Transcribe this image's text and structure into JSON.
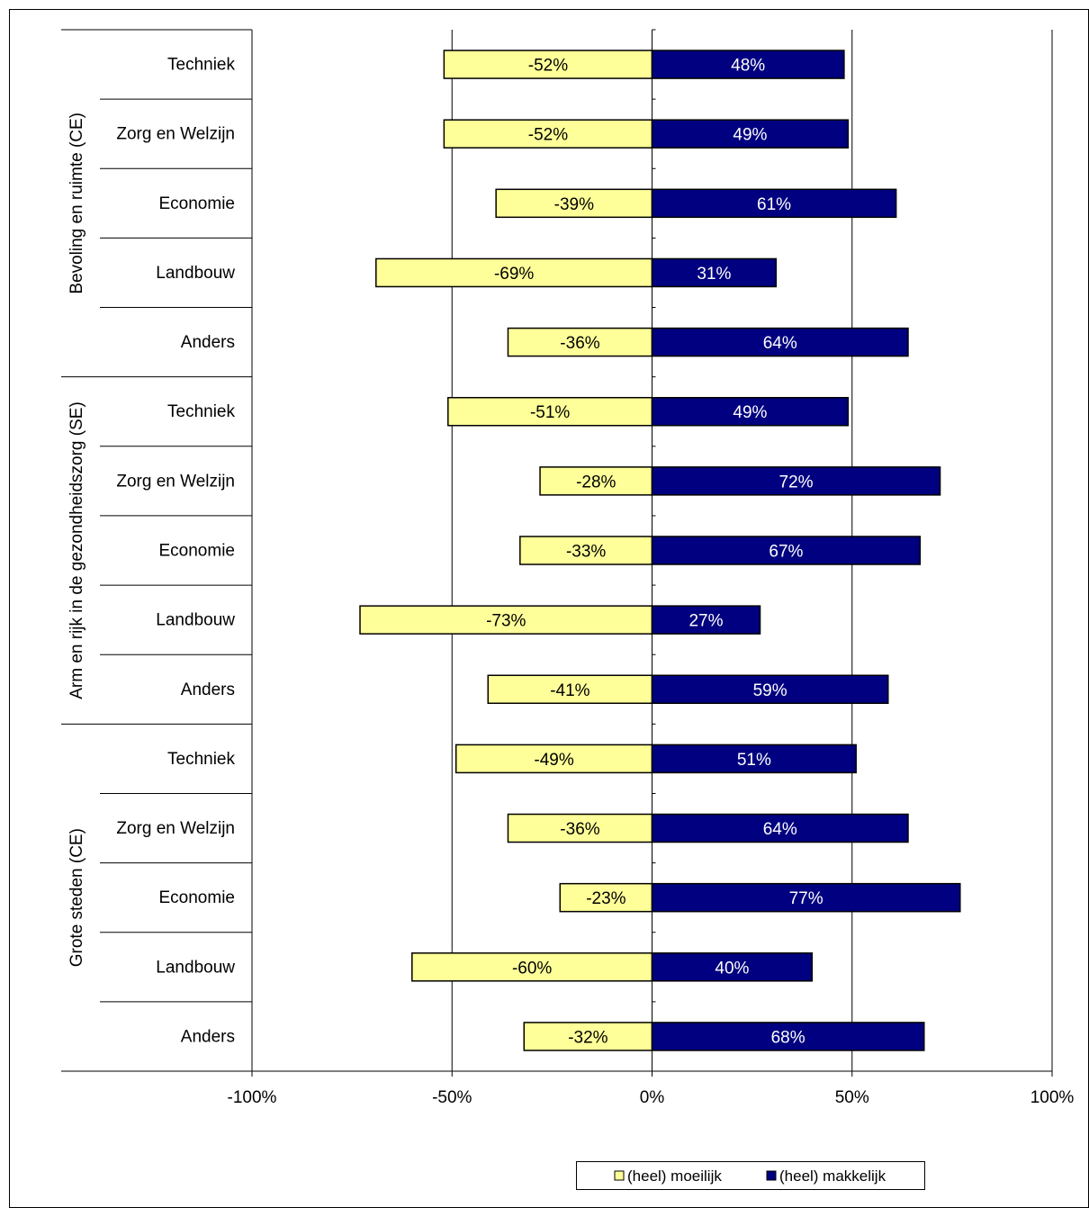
{
  "chart_data": {
    "type": "bar",
    "orientation": "horizontal",
    "stacked": "diverging",
    "title": "",
    "xlabel": "",
    "ylabel": "",
    "xlim": [
      -100,
      100
    ],
    "x_ticks": [
      "-100%",
      "-50%",
      "0%",
      "50%",
      "100%"
    ],
    "x_tick_values": [
      -100,
      -50,
      0,
      50,
      100
    ],
    "grid": "vertical gridlines at -50%, 50% and 100%",
    "legend_position": "bottom",
    "groups": [
      {
        "name": "Bevoling en ruimte (CE)",
        "categories": [
          "Techniek",
          "Zorg en Welzijn",
          "Economie",
          "Landbouw",
          "Anders"
        ]
      },
      {
        "name": "Arm en rijk in de gezondheidszorg (SE)",
        "categories": [
          "Techniek",
          "Zorg en Welzijn",
          "Economie",
          "Landbouw",
          "Anders"
        ]
      },
      {
        "name": "Grote steden (CE)",
        "categories": [
          "Techniek",
          "Zorg en Welzijn",
          "Economie",
          "Landbouw",
          "Anders"
        ]
      }
    ],
    "series": [
      {
        "name": "(heel) moeilijk",
        "color": "#ffff99",
        "values": [
          -52,
          -52,
          -39,
          -69,
          -36,
          -51,
          -28,
          -33,
          -73,
          -41,
          -49,
          -36,
          -23,
          -60,
          -32
        ],
        "labels": [
          "-52%",
          "-52%",
          "-39%",
          "-69%",
          "-36%",
          "-51%",
          "-28%",
          "-33%",
          "-73%",
          "-41%",
          "-49%",
          "-36%",
          "-23%",
          "-60%",
          "-32%"
        ],
        "label_color": "#000000"
      },
      {
        "name": "(heel) makkelijk",
        "color": "#000080",
        "values": [
          48,
          49,
          61,
          31,
          64,
          49,
          72,
          67,
          27,
          59,
          51,
          64,
          77,
          40,
          68
        ],
        "labels": [
          "48%",
          "49%",
          "61%",
          "31%",
          "64%",
          "49%",
          "72%",
          "67%",
          "27%",
          "59%",
          "51%",
          "64%",
          "77%",
          "40%",
          "68%"
        ],
        "label_color": "#ffffff"
      }
    ]
  }
}
